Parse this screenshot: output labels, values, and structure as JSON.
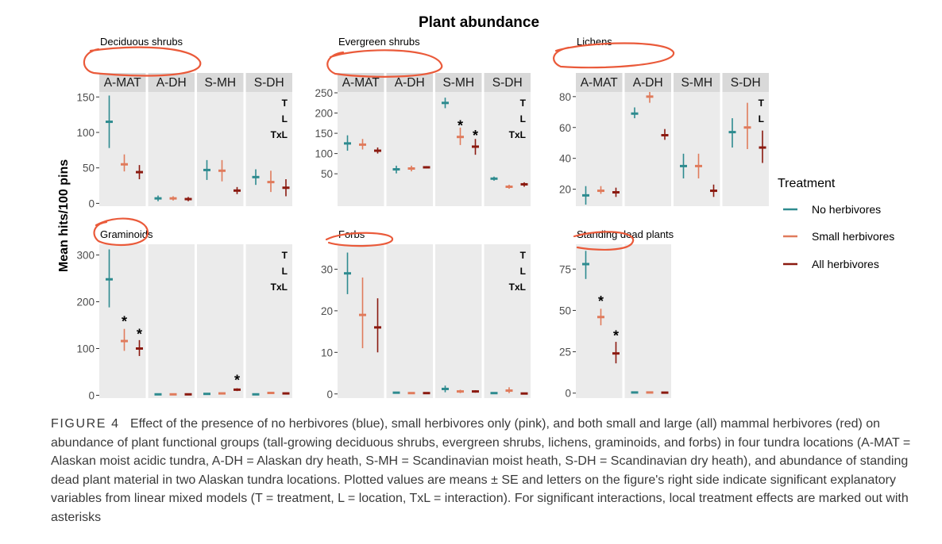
{
  "title": "Plant abundance",
  "ylabel": "Mean hits/100 pins",
  "legend": {
    "title": "Treatment",
    "items": [
      {
        "label": "No herbivores",
        "color": "#2e8b8f"
      },
      {
        "label": "Small herbivores",
        "color": "#e07b5c"
      },
      {
        "label": "All herbivores",
        "color": "#8b1a10"
      }
    ]
  },
  "annotation_color": "#ea5a3a",
  "caption": {
    "label": "FIGURE 4",
    "text": "Effect of the presence of no herbivores (blue), small herbivores only (pink), and both small and large (all) mammal herbivores (red) on abundance of plant functional groups (tall-growing deciduous shrubs, evergreen shrubs, lichens, graminoids, and forbs) in four tundra locations (A-MAT = Alaskan moist acidic tundra, A-DH = Alaskan dry heath, S-MH = Scandinavian moist heath, S-DH = Scandinavian dry heath), and abundance of standing dead plant material in two Alaskan tundra locations. Plotted values are means ± SE and letters on the figure's right side indicate significant explanatory variables from linear mixed models (T = treatment, L = location, TxL = interaction). For significant interactions, local treatment effects are marked out with asterisks"
  },
  "chart_data": [
    {
      "type": "scatter",
      "title": "Deciduous shrubs",
      "facets": [
        "A-MAT",
        "A-DH",
        "S-MH",
        "S-DH"
      ],
      "ylim": [
        -4,
        157
      ],
      "yticks": [
        0,
        50,
        100,
        150
      ],
      "sig": [
        "T",
        "L",
        "TxL"
      ],
      "series": [
        {
          "name": "No herbivores",
          "values": [
            [
              115,
              78,
              152
            ],
            [
              7,
              3,
              11
            ],
            [
              47,
              33,
              61
            ],
            [
              37,
              26,
              48
            ]
          ]
        },
        {
          "name": "Small herbivores",
          "values": [
            [
              55,
              45,
              69
            ],
            [
              7,
              4,
              10
            ],
            [
              46,
              31,
              61
            ],
            [
              30,
              16,
              46
            ]
          ]
        },
        {
          "name": "All herbivores",
          "values": [
            [
              44,
              34,
              54
            ],
            [
              6,
              3,
              9
            ],
            [
              18,
              13,
              23
            ],
            [
              22,
              10,
              34
            ]
          ]
        }
      ],
      "asterisks": []
    },
    {
      "type": "scatter",
      "title": "Evergreen shrubs",
      "facets": [
        "A-MAT",
        "A-DH",
        "S-MH",
        "S-DH"
      ],
      "ylim": [
        -30,
        252
      ],
      "yticks": [
        50,
        100,
        150,
        200,
        250
      ],
      "sig": [
        "T",
        "L",
        "TxL"
      ],
      "series": [
        {
          "name": "No herbivores",
          "values": [
            [
              125,
              107,
              145
            ],
            [
              61,
              51,
              70
            ],
            [
              225,
              212,
              238
            ],
            [
              38,
              33,
              43
            ]
          ]
        },
        {
          "name": "Small herbivores",
          "values": [
            [
              122,
              110,
              136
            ],
            [
              63,
              56,
              70
            ],
            [
              141,
              121,
              164
            ],
            [
              18,
              13,
              23
            ]
          ]
        },
        {
          "name": "All herbivores",
          "values": [
            [
              107,
              100,
              115
            ],
            [
              66,
              63,
              69
            ],
            [
              117,
              97,
              136
            ],
            [
              24,
              18,
              29
            ]
          ]
        }
      ],
      "asterisks": [
        {
          "facet": 2,
          "series": 1,
          "value": 175
        },
        {
          "facet": 2,
          "series": 2,
          "value": 150
        }
      ]
    },
    {
      "type": "scatter",
      "title": "Lichens",
      "facets": [
        "A-MAT",
        "A-DH",
        "S-MH",
        "S-DH"
      ],
      "ylim": [
        9,
        83
      ],
      "yticks": [
        20,
        40,
        60,
        80
      ],
      "sig": [
        "T",
        "L"
      ],
      "series": [
        {
          "name": "No herbivores",
          "values": [
            [
              16,
              10,
              22
            ],
            [
              69,
              66,
              73
            ],
            [
              35,
              27,
              43
            ],
            [
              57,
              47,
              66
            ]
          ]
        },
        {
          "name": "Small herbivores",
          "values": [
            [
              19,
              17,
              22
            ],
            [
              80,
              76,
              83
            ],
            [
              35,
              27,
              43
            ],
            [
              60,
              46,
              76
            ]
          ]
        },
        {
          "name": "All herbivores",
          "values": [
            [
              18,
              15,
              21
            ],
            [
              55,
              52,
              59
            ],
            [
              19,
              15,
              23
            ],
            [
              47,
              37,
              58
            ]
          ]
        }
      ],
      "asterisks": []
    },
    {
      "type": "scatter",
      "title": "Graminoids",
      "facets": [
        "A-MAT",
        "A-DH",
        "S-MH",
        "S-DH"
      ],
      "ylim": [
        -6,
        323
      ],
      "yticks": [
        0,
        100,
        200,
        300
      ],
      "sig": [
        "T",
        "L",
        "TxL"
      ],
      "series": [
        {
          "name": "No herbivores",
          "values": [
            [
              248,
              188,
              312
            ],
            [
              2,
              1,
              3
            ],
            [
              3,
              2,
              4
            ],
            [
              2,
              1,
              3
            ]
          ]
        },
        {
          "name": "Small herbivores",
          "values": [
            [
              116,
              95,
              142
            ],
            [
              2,
              1,
              3
            ],
            [
              4,
              3,
              5
            ],
            [
              5,
              3,
              7
            ]
          ]
        },
        {
          "name": "All herbivores",
          "values": [
            [
              100,
              84,
              118
            ],
            [
              2,
              1,
              3
            ],
            [
              12,
              9,
              15
            ],
            [
              4,
              2,
              6
            ]
          ]
        }
      ],
      "asterisks": [
        {
          "facet": 0,
          "series": 1,
          "value": 163
        },
        {
          "facet": 0,
          "series": 2,
          "value": 136
        },
        {
          "facet": 2,
          "series": 2,
          "value": 37
        }
      ]
    },
    {
      "type": "scatter",
      "title": "Forbs",
      "facets": [
        "A-MAT",
        "A-DH",
        "S-MH",
        "S-DH"
      ],
      "ylim": [
        -1,
        36
      ],
      "yticks": [
        0,
        10,
        20,
        30
      ],
      "sig": [
        "T",
        "L",
        "TxL"
      ],
      "series": [
        {
          "name": "No herbivores",
          "values": [
            [
              29,
              24,
              34
            ],
            [
              0.3,
              0.1,
              0.5
            ],
            [
              1.2,
              0.4,
              2
            ],
            [
              0.2,
              0.1,
              0.3
            ]
          ]
        },
        {
          "name": "Small herbivores",
          "values": [
            [
              19,
              11,
              28
            ],
            [
              0.2,
              0.1,
              0.3
            ],
            [
              0.6,
              0.2,
              1
            ],
            [
              0.8,
              0.2,
              1.6
            ]
          ]
        },
        {
          "name": "All herbivores",
          "values": [
            [
              16,
              10,
              23
            ],
            [
              0.2,
              0.1,
              0.3
            ],
            [
              0.6,
              0.3,
              0.9
            ],
            [
              0.1,
              0,
              0.2
            ]
          ]
        }
      ],
      "asterisks": []
    },
    {
      "type": "scatter",
      "title": "Standing dead plants",
      "facets": [
        "A-MAT",
        "A-DH"
      ],
      "ylim": [
        -3,
        90
      ],
      "yticks": [
        0,
        25,
        50,
        75
      ],
      "sig": [],
      "series": [
        {
          "name": "No herbivores",
          "values": [
            [
              78,
              69,
              86
            ],
            [
              0.4,
              0.2,
              0.6
            ]
          ]
        },
        {
          "name": "Small herbivores",
          "values": [
            [
              46,
              41,
              51
            ],
            [
              0.4,
              0.2,
              0.6
            ]
          ]
        },
        {
          "name": "All herbivores",
          "values": [
            [
              24,
              18,
              31
            ],
            [
              0.3,
              0.1,
              0.5
            ]
          ]
        }
      ],
      "asterisks": [
        {
          "facet": 0,
          "series": 1,
          "value": 57
        },
        {
          "facet": 0,
          "series": 2,
          "value": 36
        }
      ]
    }
  ]
}
